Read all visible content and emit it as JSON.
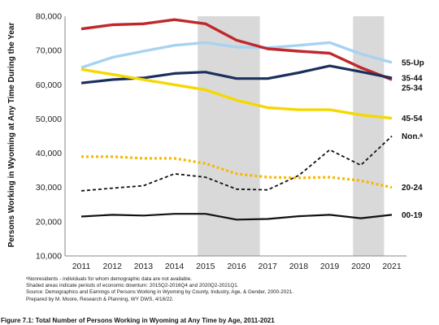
{
  "chart_data": {
    "type": "line",
    "title": "",
    "xlabel": "",
    "ylabel": "Persons Working in Wyoming at Any Time During the Year",
    "x": [
      2011,
      2012,
      2013,
      2014,
      2015,
      2016,
      2017,
      2018,
      2019,
      2020,
      2021
    ],
    "ylim": [
      10000,
      80000
    ],
    "yticks": [
      "10,000",
      "20,000",
      "30,000",
      "40,000",
      "50,000",
      "60,000",
      "70,000",
      "80,000"
    ],
    "grid": false,
    "shaded_periods": [
      [
        2014.75,
        2016.75
      ],
      [
        2019.75,
        2020.75
      ]
    ],
    "legend": "labels at line ends, right side",
    "series": [
      {
        "name": "55-Up",
        "color": "#a8d3f0",
        "style": "solid",
        "values": [
          65000,
          68000,
          69800,
          71500,
          72300,
          71000,
          70800,
          71500,
          72300,
          69000,
          66500
        ]
      },
      {
        "name": "25-34",
        "color": "#c0272d",
        "style": "solid",
        "values": [
          76300,
          77500,
          77800,
          79000,
          77800,
          73000,
          70500,
          69800,
          69200,
          65000,
          61500
        ]
      },
      {
        "name": "35-44",
        "color": "#1b2f5e",
        "style": "solid",
        "values": [
          60500,
          61500,
          62000,
          63300,
          63700,
          61800,
          61800,
          63500,
          65500,
          63800,
          62000
        ]
      },
      {
        "name": "45-54",
        "color": "#f5d800",
        "style": "solid",
        "values": [
          64500,
          63000,
          61500,
          60000,
          58500,
          55500,
          53300,
          52700,
          52700,
          51200,
          50200
        ]
      },
      {
        "name": "Non.ᵃ",
        "color": "#111111",
        "style": "dashed",
        "values": [
          29000,
          29800,
          30500,
          34000,
          33000,
          29500,
          29300,
          33500,
          41000,
          36500,
          45000
        ]
      },
      {
        "name": "20-24",
        "color": "#f5b800",
        "style": "dotted",
        "values": [
          39000,
          39000,
          38500,
          38500,
          37000,
          34000,
          33000,
          32800,
          33000,
          32000,
          30000
        ]
      },
      {
        "name": "00-19",
        "color": "#111111",
        "style": "solid",
        "values": [
          21500,
          22000,
          21800,
          22300,
          22300,
          20600,
          20800,
          21600,
          22000,
          21000,
          22000
        ]
      }
    ]
  },
  "notes": [
    "ᵃNonresidents - individuals for whom demographic data are not available.",
    "Shaded areas indicate periods of economic downturn: 2015Q2-2016Q4 and 2020Q2-2021Q1.",
    "Source: Demographics and Earnings of Persons Working in Wyoming by County, Industry, Age, & Gender, 2000-2021.",
    "Prepared by M. Moore, Research & Planning, WY DWS, 4/18/22."
  ],
  "caption": "Figure 7.1: Total Number of Persons Working in Wyoming at Any Time by Age, 2011-2021"
}
